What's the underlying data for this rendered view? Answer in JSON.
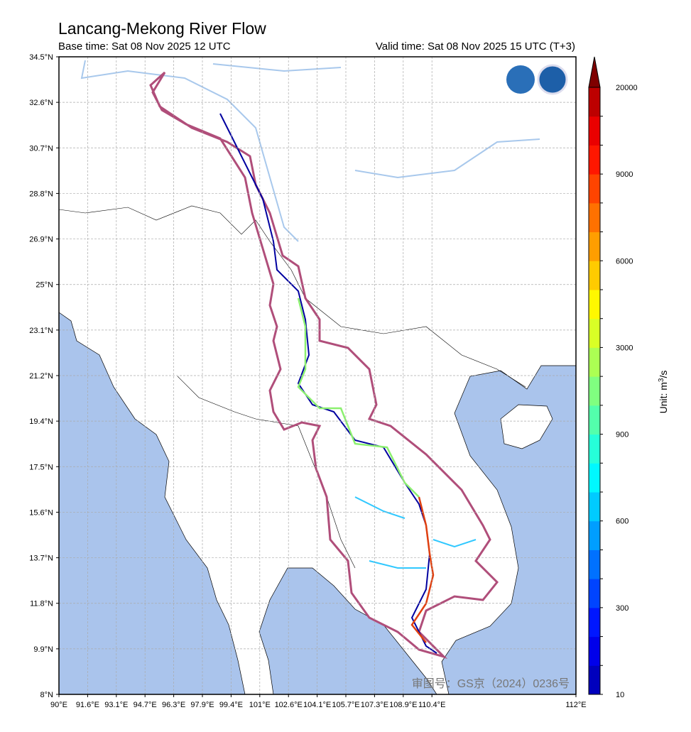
{
  "title": "Lancang-Mekong River Flow",
  "base_time": "Base time: Sat 08 Nov 2025 12 UTC",
  "valid_time": "Valid time: Sat 08 Nov 2025 15 UTC (T+3)",
  "lat_ticks": [
    "34.5°N",
    "32.6°N",
    "30.7°N",
    "28.8°N",
    "26.9°N",
    "25°N",
    "23.1°N",
    "21.2°N",
    "19.4°N",
    "17.5°N",
    "15.6°N",
    "13.7°N",
    "11.8°N",
    "9.9°N",
    "8°N"
  ],
  "lon_ticks": [
    "90°E",
    "91.6°E",
    "93.1°E",
    "94.7°E",
    "96.3°E",
    "97.9°E",
    "99.4°E",
    "101°E",
    "102.6°E",
    "104.1°E",
    "105.7°E",
    "107.3°E",
    "108.9°E",
    "110.4°E",
    "112°E"
  ],
  "colorbar": {
    "ticks": [
      10,
      300,
      600,
      900,
      3000,
      6000,
      9000,
      20000
    ],
    "unit_label": "Unit: m",
    "unit_power": "3",
    "unit_suffix": "/s"
  },
  "watermark": "审图号：GS京（2024）0236号"
}
